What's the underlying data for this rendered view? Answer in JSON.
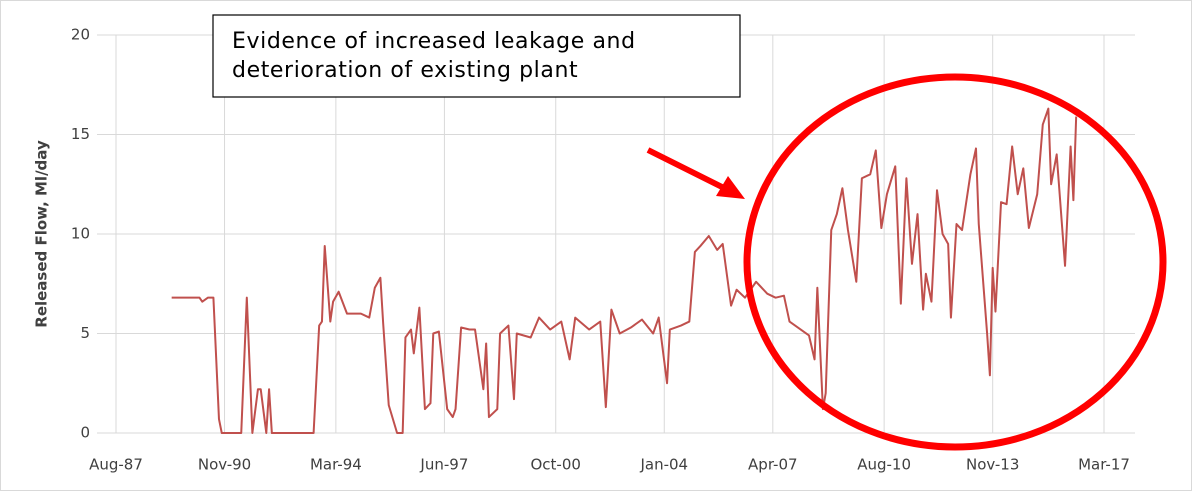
{
  "chart_data": {
    "type": "line",
    "y_axis_label": "Released Flow, Ml/day",
    "annotation": [
      "Evidence of increased leakage and",
      "deterioration of existing plant"
    ],
    "grid": true,
    "xlim": [
      "1987-08",
      "2017-03"
    ],
    "xticks": [
      {
        "value": "1987-08",
        "label": "Aug-87"
      },
      {
        "value": "1990-11",
        "label": "Nov-90"
      },
      {
        "value": "1994-03",
        "label": "Mar-94"
      },
      {
        "value": "1997-06",
        "label": "Jun-97"
      },
      {
        "value": "2000-10",
        "label": "Oct-00"
      },
      {
        "value": "2004-01",
        "label": "Jan-04"
      },
      {
        "value": "2007-04",
        "label": "Apr-07"
      },
      {
        "value": "2010-08",
        "label": "Aug-10"
      },
      {
        "value": "2013-11",
        "label": "Nov-13"
      },
      {
        "value": "2017-03",
        "label": "Mar-17"
      }
    ],
    "ylim": [
      0,
      20
    ],
    "yticks": [
      0,
      5,
      10,
      15,
      20
    ],
    "x": [
      "1989-04",
      "1990-02",
      "1990-03",
      "1990-05",
      "1990-07",
      "1990-09",
      "1990-10",
      "1991-05",
      "1991-07",
      "1991-09",
      "1991-11",
      "1991-12",
      "1992-02",
      "1992-03",
      "1992-04",
      "1993-07",
      "1993-09",
      "1993-10",
      "1993-11",
      "1994-01",
      "1994-02",
      "1994-04",
      "1994-07",
      "1994-12",
      "1995-03",
      "1995-05",
      "1995-07",
      "1995-08",
      "1995-10",
      "1996-01",
      "1996-03",
      "1996-04",
      "1996-06",
      "1996-07",
      "1996-09",
      "1996-11",
      "1997-01",
      "1997-02",
      "1997-04",
      "1997-07",
      "1997-09",
      "1997-10",
      "1997-12",
      "1998-03",
      "1998-05",
      "1998-08",
      "1998-09",
      "1998-10",
      "1999-01",
      "1999-02",
      "1999-05",
      "1999-07",
      "1999-08",
      "2000-01",
      "2000-04",
      "2000-08",
      "2000-12",
      "2001-03",
      "2001-05",
      "2001-10",
      "2002-02",
      "2002-04",
      "2002-06",
      "2002-09",
      "2003-01",
      "2003-05",
      "2003-09",
      "2003-11",
      "2004-02",
      "2004-03",
      "2004-07",
      "2004-10",
      "2004-12",
      "2005-02",
      "2005-05",
      "2005-08",
      "2005-10",
      "2006-01",
      "2006-03",
      "2006-06",
      "2006-10",
      "2007-02",
      "2007-05",
      "2007-08",
      "2007-10",
      "2008-05",
      "2008-07",
      "2008-08",
      "2008-10",
      "2008-11",
      "2009-01",
      "2009-03",
      "2009-05",
      "2009-07",
      "2009-10",
      "2009-12",
      "2010-03",
      "2010-05",
      "2010-07",
      "2010-09",
      "2010-12",
      "2011-02",
      "2011-04",
      "2011-06",
      "2011-08",
      "2011-10",
      "2011-11",
      "2012-01",
      "2012-03",
      "2012-05",
      "2012-07",
      "2012-08",
      "2012-10",
      "2012-12",
      "2013-03",
      "2013-05",
      "2013-06",
      "2013-09",
      "2013-10",
      "2013-11",
      "2013-12",
      "2014-02",
      "2014-04",
      "2014-06",
      "2014-08",
      "2014-10",
      "2014-12",
      "2015-03",
      "2015-05",
      "2015-07",
      "2015-08",
      "2015-10",
      "2016-01",
      "2016-03",
      "2016-04",
      "2016-05"
    ],
    "series": [
      {
        "color": "#c0504d",
        "values": [
          6.8,
          6.8,
          6.6,
          6.8,
          6.8,
          0.7,
          0,
          0,
          6.8,
          0,
          2.2,
          2.2,
          0,
          2.2,
          0,
          0,
          5.4,
          5.6,
          9.4,
          5.6,
          6.6,
          7.1,
          6.0,
          6.0,
          5.8,
          7.3,
          7.8,
          5.5,
          1.4,
          0,
          0,
          4.8,
          5.2,
          4.0,
          6.3,
          1.2,
          1.5,
          5.0,
          5.1,
          1.2,
          0.8,
          1.2,
          5.3,
          5.2,
          5.2,
          2.2,
          4.5,
          0.8,
          1.2,
          5.0,
          5.4,
          1.7,
          5.0,
          4.8,
          5.8,
          5.2,
          5.6,
          3.7,
          5.8,
          5.2,
          5.6,
          1.3,
          6.2,
          5.0,
          5.3,
          5.7,
          5.0,
          5.8,
          2.5,
          5.2,
          5.4,
          5.6,
          9.1,
          9.4,
          9.9,
          9.2,
          9.5,
          6.4,
          7.2,
          6.8,
          7.6,
          7.0,
          6.8,
          6.9,
          5.6,
          4.9,
          3.7,
          7.3,
          1.2,
          2.0,
          10.2,
          11.0,
          12.3,
          10.2,
          7.6,
          12.8,
          13.0,
          14.2,
          10.3,
          12.0,
          13.4,
          6.5,
          12.8,
          8.5,
          11.0,
          6.2,
          8.0,
          6.6,
          12.2,
          10.0,
          9.5,
          5.8,
          10.5,
          10.2,
          13.0,
          14.3,
          10.5,
          5.0,
          2.9,
          8.3,
          6.1,
          11.6,
          11.5,
          14.4,
          12.0,
          13.3,
          10.3,
          12.0,
          15.5,
          16.3,
          12.5,
          14.0,
          8.4,
          14.4,
          11.7,
          15.9
        ]
      }
    ]
  }
}
